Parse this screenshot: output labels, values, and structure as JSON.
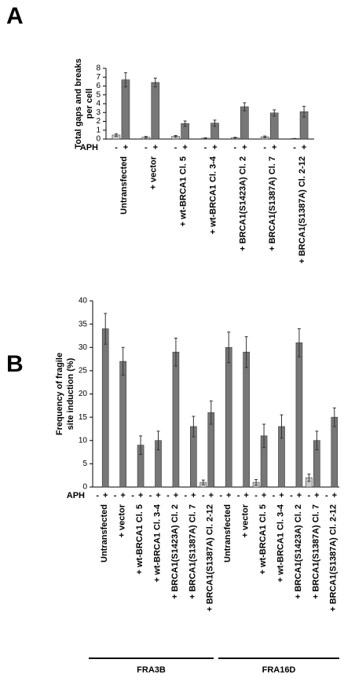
{
  "chart_data": [
    {
      "type": "bar",
      "panel_label": "A",
      "ylabel": [
        "Total gaps and breaks",
        "per cell"
      ],
      "xlabel": "APH",
      "categories": [
        "Untransfected",
        "+ vector",
        "+ wt-BRCA1 Cl. 5",
        "+ wt-BRCA1 Cl. 3-4",
        "+ BRCA1(S1423A) Cl. 2",
        "+ BRCA1(S1387A) Cl. 7",
        "+ BRCA1(S1387A) Cl. 2-12"
      ],
      "series": [
        {
          "name": "-",
          "color": "#cccccc",
          "values": [
            0.45,
            0.2,
            0.3,
            0.1,
            0.15,
            0.25,
            0.05
          ],
          "errors": [
            0.15,
            0.1,
            0.1,
            0.05,
            0.05,
            0.1,
            0.02
          ]
        },
        {
          "name": "+",
          "color": "#777777",
          "values": [
            6.7,
            6.4,
            1.75,
            1.8,
            3.65,
            2.95,
            3.1
          ],
          "errors": [
            0.8,
            0.5,
            0.3,
            0.35,
            0.45,
            0.35,
            0.6
          ]
        }
      ],
      "ylim": [
        0,
        8
      ],
      "yticks": [
        0,
        1,
        2,
        3,
        4,
        5,
        6,
        7,
        8
      ]
    },
    {
      "type": "bar",
      "panel_label": "B",
      "ylabel": [
        "Frequency of fragile",
        "site induction (%)"
      ],
      "xlabel": "APH",
      "categories": [
        "Untransfected",
        "+ vector",
        "+ wt-BRCA1 Cl. 5",
        "+ wt-BRCA1 Cl. 3-4",
        "+ BRCA1(S1423A) Cl. 2",
        "+ BRCA1(S1387A) Cl. 7",
        "+ BRCA1(S1387A) Cl. 2-12",
        "Untransfected",
        "+ vector",
        "+ wt-BRCA1 Cl. 5",
        "+ wt-BRCA1 Cl. 3-4",
        "+ BRCA1(S1423A) Cl. 2",
        "+ BRCA1(S1387A) Cl. 7",
        "+ BRCA1(S1387A) Cl. 2-12"
      ],
      "groups": [
        "FRA3B",
        "FRA16D"
      ],
      "series": [
        {
          "name": "-",
          "color": "#cccccc",
          "values": [
            0,
            0,
            0,
            0,
            0,
            0,
            1,
            0,
            0,
            1,
            0,
            0,
            2,
            0
          ],
          "errors": [
            0,
            0,
            0,
            0,
            0,
            0,
            0.5,
            0,
            0,
            0.6,
            0,
            0,
            0.8,
            0
          ]
        },
        {
          "name": "+",
          "color": "#777777",
          "values": [
            34,
            27,
            9,
            10,
            29,
            13,
            16,
            30,
            29,
            11,
            13,
            31,
            10,
            15
          ],
          "errors": [
            3.3,
            3,
            2,
            2,
            3,
            2.2,
            2.5,
            3.3,
            3.3,
            2.5,
            2.5,
            3,
            2,
            2
          ]
        }
      ],
      "ylim": [
        0,
        40
      ],
      "yticks": [
        0,
        5,
        10,
        15,
        20,
        25,
        30,
        35,
        40
      ]
    }
  ]
}
